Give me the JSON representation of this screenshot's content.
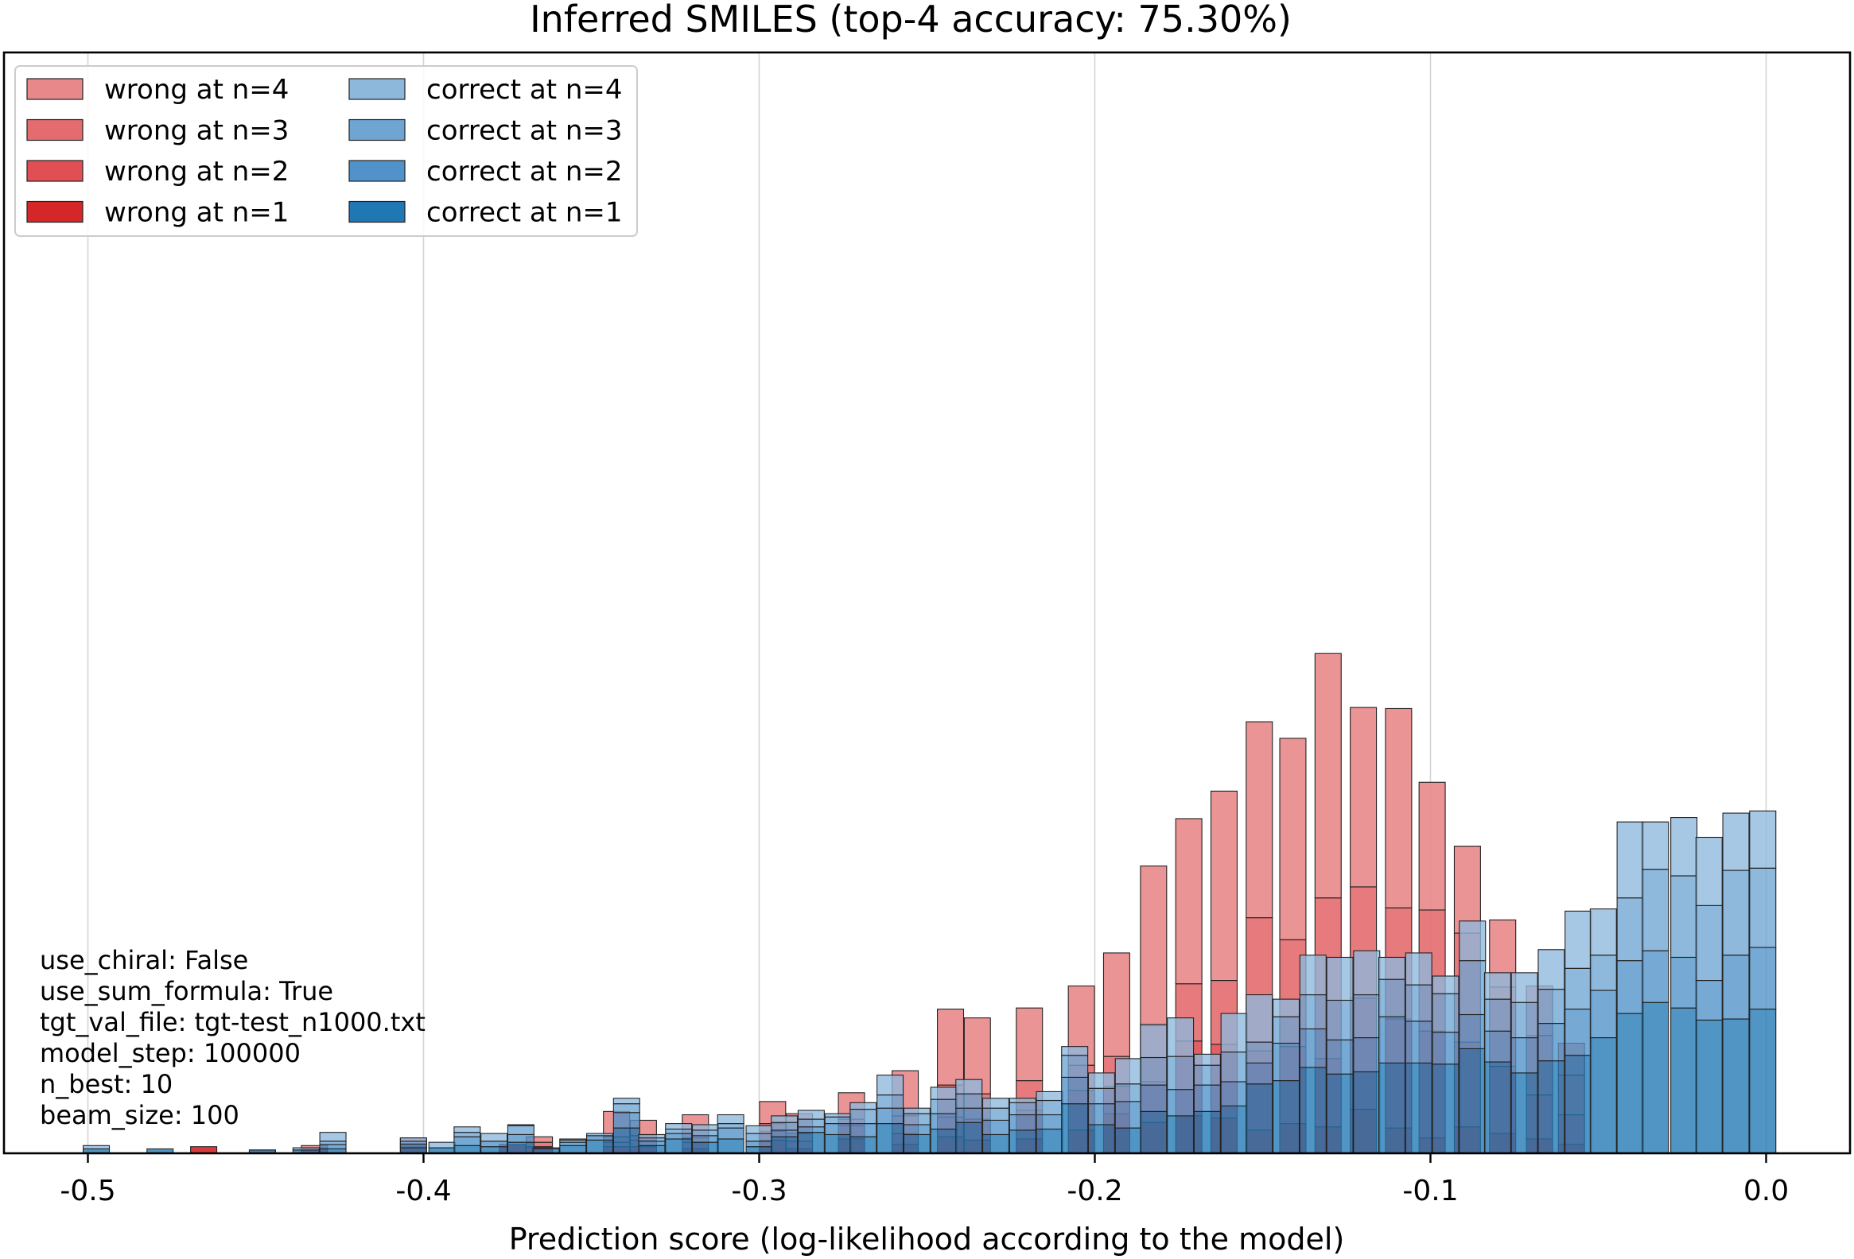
{
  "chart_data": {
    "type": "bar",
    "stacked_histogram": true,
    "title": "Inferred SMILES (top-4 accuracy: 75.30%)",
    "xlabel": "Prediction score (log-likelihood according to the model)",
    "ylabel": "",
    "xlim": [
      -0.525,
      0.025
    ],
    "ylim": [
      0,
      1.0
    ],
    "xticks": [
      "-0.5",
      "-0.4",
      "-0.3",
      "-0.2",
      "-0.1",
      "0.0"
    ],
    "grid": "x",
    "legend_position": "top-left",
    "legend": [
      {
        "label": "wrong at n=4",
        "color": "#e8888a"
      },
      {
        "label": "wrong at n=3",
        "color": "#e46b6e"
      },
      {
        "label": "wrong at n=2",
        "color": "#df4f53"
      },
      {
        "label": "wrong at n=1",
        "color": "#d62728"
      },
      {
        "label": "correct at n=4",
        "color": "#8db8dc"
      },
      {
        "label": "correct at n=3",
        "color": "#6ea5d3"
      },
      {
        "label": "correct at n=2",
        "color": "#5092c9"
      },
      {
        "label": "correct at n=1",
        "color": "#1f77b4"
      }
    ],
    "bin_width": 0.0078,
    "wrong": {
      "name": "wrong",
      "bins": [
        {
          "x": -0.4655,
          "stack": [
            0.006,
            0,
            0,
            0
          ]
        },
        {
          "x": -0.448,
          "stack": [
            0,
            0,
            0,
            0.003
          ]
        },
        {
          "x": -0.4325,
          "stack": [
            0.005,
            0,
            0,
            0.002
          ]
        },
        {
          "x": -0.403,
          "stack": [
            0.006,
            0.003,
            0,
            0.005
          ]
        },
        {
          "x": -0.3735,
          "stack": [
            0.008,
            0,
            0,
            0
          ]
        },
        {
          "x": -0.3655,
          "stack": [
            0.006,
            0,
            0.004,
            0.005
          ]
        },
        {
          "x": -0.3425,
          "stack": [
            0.006,
            0.004,
            0.005,
            0.023
          ]
        },
        {
          "x": -0.3345,
          "stack": [
            0.006,
            0.006,
            0.004,
            0.014
          ]
        },
        {
          "x": -0.319,
          "stack": [
            0.004,
            0.006,
            0.004,
            0.021
          ]
        },
        {
          "x": -0.296,
          "stack": [
            0.012,
            0.008,
            0.007,
            0.02
          ]
        },
        {
          "x": -0.288,
          "stack": [
            0.004,
            0.007,
            0.007,
            0.018
          ]
        },
        {
          "x": -0.2725,
          "stack": [
            0.013,
            0.012,
            0.006,
            0.024
          ]
        },
        {
          "x": -0.2565,
          "stack": [
            0.008,
            0.01,
            0.016,
            0.041
          ]
        },
        {
          "x": -0.243,
          "stack": [
            0.015,
            0.018,
            0.029,
            0.069
          ]
        },
        {
          "x": -0.235,
          "stack": [
            0.012,
            0.019,
            0.023,
            0.069
          ]
        },
        {
          "x": -0.2195,
          "stack": [
            0.013,
            0.026,
            0.027,
            0.066
          ]
        },
        {
          "x": -0.204,
          "stack": [
            0.021,
            0.036,
            0.023,
            0.072
          ]
        },
        {
          "x": -0.1935,
          "stack": [
            0.036,
            0.025,
            0.027,
            0.094
          ]
        },
        {
          "x": -0.1825,
          "stack": [
            0.028,
            0.037,
            0.051,
            0.145
          ]
        },
        {
          "x": -0.172,
          "stack": [
            0.034,
            0.068,
            0.052,
            0.15
          ]
        },
        {
          "x": -0.1615,
          "stack": [
            0.032,
            0.067,
            0.058,
            0.172
          ]
        },
        {
          "x": -0.151,
          "stack": [
            0.021,
            0.072,
            0.121,
            0.178
          ]
        },
        {
          "x": -0.141,
          "stack": [
            0.027,
            0.07,
            0.097,
            0.183
          ]
        },
        {
          "x": -0.1305,
          "stack": [
            0.024,
            0.062,
            0.146,
            0.222
          ]
        },
        {
          "x": -0.12,
          "stack": [
            0.04,
            0.101,
            0.101,
            0.163
          ]
        },
        {
          "x": -0.1095,
          "stack": [
            0.023,
            0.099,
            0.101,
            0.181
          ]
        },
        {
          "x": -0.0995,
          "stack": [
            0.014,
            0.097,
            0.11,
            0.116
          ]
        },
        {
          "x": -0.089,
          "stack": [
            0.024,
            0.077,
            0.099,
            0.079
          ]
        },
        {
          "x": -0.0785,
          "stack": [
            0.018,
            0.061,
            0.072,
            0.061
          ]
        },
        {
          "x": -0.0675,
          "stack": [
            0.013,
            0.04,
            0.054,
            0.045
          ]
        },
        {
          "x": -0.058,
          "stack": [
            0.008,
            0.027,
            0.036,
            0.029
          ]
        }
      ]
    },
    "correct": {
      "name": "correct",
      "bins": [
        {
          "x": -0.4975,
          "stack": [
            0.004,
            0,
            0,
            0.003
          ]
        },
        {
          "x": -0.4785,
          "stack": [
            0.004,
            0,
            0,
            0
          ]
        },
        {
          "x": -0.448,
          "stack": [
            0.003,
            0,
            0,
            0
          ]
        },
        {
          "x": -0.435,
          "stack": [
            0.003,
            0,
            0,
            0.002
          ]
        },
        {
          "x": -0.427,
          "stack": [
            0.004,
            0.004,
            0.003,
            0.008
          ]
        },
        {
          "x": -0.403,
          "stack": [
            0.005,
            0.003,
            0.003,
            0.003
          ]
        },
        {
          "x": -0.3945,
          "stack": [
            0.005,
            0,
            0,
            0.005
          ]
        },
        {
          "x": -0.387,
          "stack": [
            0.007,
            0.008,
            0.004,
            0.005
          ]
        },
        {
          "x": -0.379,
          "stack": [
            0.006,
            0.005,
            0,
            0.007
          ]
        },
        {
          "x": -0.371,
          "stack": [
            0.01,
            0.007,
            0.008,
            0.001
          ]
        },
        {
          "x": -0.3635,
          "stack": [
            0.004,
            0,
            0,
            0.001
          ]
        },
        {
          "x": -0.3555,
          "stack": [
            0.007,
            0.003,
            0.002,
            0.001
          ]
        },
        {
          "x": -0.3475,
          "stack": [
            0.012,
            0.004,
            0,
            0.002
          ]
        },
        {
          "x": -0.3395,
          "stack": [
            0.023,
            0.014,
            0.008,
            0.005
          ]
        },
        {
          "x": -0.332,
          "stack": [
            0.007,
            0.004,
            0.003,
            0.003
          ]
        },
        {
          "x": -0.324,
          "stack": [
            0.013,
            0.005,
            0.004,
            0.005
          ]
        },
        {
          "x": -0.316,
          "stack": [
            0.01,
            0.006,
            0.005,
            0.005
          ]
        },
        {
          "x": -0.3085,
          "stack": [
            0.013,
            0.01,
            0.004,
            0.008
          ]
        },
        {
          "x": -0.3,
          "stack": [
            0.006,
            0.005,
            0.007,
            0.007
          ]
        },
        {
          "x": -0.2925,
          "stack": [
            0.015,
            0.006,
            0.007,
            0.006
          ]
        },
        {
          "x": -0.2845,
          "stack": [
            0.019,
            0.005,
            0.007,
            0.008
          ]
        },
        {
          "x": -0.2765,
          "stack": [
            0.017,
            0.01,
            0.006,
            0.003
          ]
        },
        {
          "x": -0.269,
          "stack": [
            0.015,
            0.012,
            0.013,
            0.006
          ]
        },
        {
          "x": -0.261,
          "stack": [
            0.027,
            0.014,
            0.012,
            0.018
          ]
        },
        {
          "x": -0.253,
          "stack": [
            0.017,
            0.009,
            0.01,
            0.005
          ]
        },
        {
          "x": -0.245,
          "stack": [
            0.022,
            0.014,
            0.013,
            0.011
          ]
        },
        {
          "x": -0.2375,
          "stack": [
            0.028,
            0.013,
            0.013,
            0.013
          ]
        },
        {
          "x": -0.2295,
          "stack": [
            0.017,
            0.013,
            0.011,
            0.009
          ]
        },
        {
          "x": -0.2215,
          "stack": [
            0.021,
            0.014,
            0.011,
            0.004
          ]
        },
        {
          "x": -0.2135,
          "stack": [
            0.022,
            0.013,
            0.013,
            0.008
          ]
        },
        {
          "x": -0.206,
          "stack": [
            0.045,
            0.024,
            0.02,
            0.008
          ]
        },
        {
          "x": -0.198,
          "stack": [
            0.026,
            0.019,
            0.014,
            0.014
          ]
        },
        {
          "x": -0.19,
          "stack": [
            0.023,
            0.024,
            0.016,
            0.023
          ]
        },
        {
          "x": -0.1825,
          "stack": [
            0.038,
            0.024,
            0.025,
            0.03
          ]
        },
        {
          "x": -0.1745,
          "stack": [
            0.034,
            0.024,
            0.03,
            0.035
          ]
        },
        {
          "x": -0.1665,
          "stack": [
            0.038,
            0.024,
            0.018,
            0.01
          ]
        },
        {
          "x": -0.1585,
          "stack": [
            0.043,
            0.022,
            0.027,
            0.035
          ]
        },
        {
          "x": -0.151,
          "stack": [
            0.063,
            0.019,
            0.019,
            0.043
          ]
        },
        {
          "x": -0.143,
          "stack": [
            0.066,
            0.034,
            0.024,
            0.016
          ]
        },
        {
          "x": -0.135,
          "stack": [
            0.078,
            0.035,
            0.031,
            0.036
          ]
        },
        {
          "x": -0.127,
          "stack": [
            0.072,
            0.031,
            0.036,
            0.039
          ]
        },
        {
          "x": -0.119,
          "stack": [
            0.074,
            0.031,
            0.039,
            0.04
          ]
        },
        {
          "x": -0.1115,
          "stack": [
            0.082,
            0.042,
            0.034,
            0.02
          ]
        },
        {
          "x": -0.1035,
          "stack": [
            0.082,
            0.038,
            0.033,
            0.029
          ]
        },
        {
          "x": -0.0955,
          "stack": [
            0.081,
            0.029,
            0.035,
            0.016
          ]
        },
        {
          "x": -0.0875,
          "stack": [
            0.095,
            0.031,
            0.049,
            0.036
          ]
        },
        {
          "x": -0.08,
          "stack": [
            0.083,
            0.028,
            0.029,
            0.024
          ]
        },
        {
          "x": -0.072,
          "stack": [
            0.073,
            0.032,
            0.032,
            0.027
          ]
        },
        {
          "x": -0.064,
          "stack": [
            0.084,
            0.034,
            0.031,
            0.036
          ]
        },
        {
          "x": -0.056,
          "stack": [
            0.089,
            0.042,
            0.037,
            0.052
          ]
        },
        {
          "x": -0.0485,
          "stack": [
            0.105,
            0.043,
            0.032,
            0.042
          ]
        },
        {
          "x": -0.0405,
          "stack": [
            0.127,
            0.048,
            0.057,
            0.069
          ]
        },
        {
          "x": -0.033,
          "stack": [
            0.137,
            0.047,
            0.074,
            0.043
          ]
        },
        {
          "x": -0.0245,
          "stack": [
            0.132,
            0.046,
            0.074,
            0.053
          ]
        },
        {
          "x": -0.017,
          "stack": [
            0.121,
            0.036,
            0.068,
            0.062
          ]
        },
        {
          "x": -0.009,
          "stack": [
            0.122,
            0.058,
            0.077,
            0.052
          ]
        },
        {
          "x": -0.001,
          "stack": [
            0.131,
            0.056,
            0.072,
            0.052
          ]
        }
      ]
    },
    "info_box": [
      "use_chiral: False",
      "use_sum_formula: True",
      "tgt_val_file: tgt-test_n1000.txt",
      "model_step: 100000",
      "n_best: 10",
      "beam_size: 100"
    ]
  }
}
